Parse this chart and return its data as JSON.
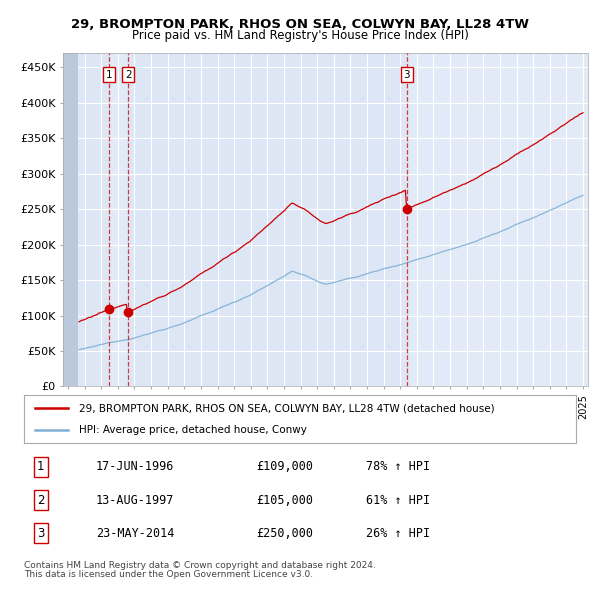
{
  "title": "29, BROMPTON PARK, RHOS ON SEA, COLWYN BAY, LL28 4TW",
  "subtitle": "Price paid vs. HM Land Registry's House Price Index (HPI)",
  "legend_line1": "29, BROMPTON PARK, RHOS ON SEA, COLWYN BAY, LL28 4TW (detached house)",
  "legend_line2": "HPI: Average price, detached house, Conwy",
  "footer1": "Contains HM Land Registry data © Crown copyright and database right 2024.",
  "footer2": "This data is licensed under the Open Government Licence v3.0.",
  "transactions": [
    {
      "num": 1,
      "date": "17-JUN-1996",
      "price": 109000,
      "pct": "78%",
      "dir": "↑"
    },
    {
      "num": 2,
      "date": "13-AUG-1997",
      "price": 105000,
      "pct": "61%",
      "dir": "↑"
    },
    {
      "num": 3,
      "date": "23-MAY-2014",
      "price": 250000,
      "pct": "26%",
      "dir": "↑"
    }
  ],
  "transaction_dates": [
    1996.46,
    1997.62,
    2014.39
  ],
  "transaction_prices": [
    109000,
    105000,
    250000
  ],
  "xlim": [
    1993.7,
    2025.3
  ],
  "ylim": [
    0,
    470000
  ],
  "yticks": [
    0,
    50000,
    100000,
    150000,
    200000,
    250000,
    300000,
    350000,
    400000,
    450000
  ],
  "ytick_labels": [
    "£0",
    "£50K",
    "£100K",
    "£150K",
    "£200K",
    "£250K",
    "£300K",
    "£350K",
    "£400K",
    "£450K"
  ],
  "hatch_end_year": 1994.6,
  "plot_bg_color": "#dce6f5",
  "shade_bg_color": "#e4edf7",
  "red_color": "#cc0000",
  "blue_color": "#7fafd4",
  "grid_color": "#ffffff",
  "hatch_color": "#bcc8dc"
}
